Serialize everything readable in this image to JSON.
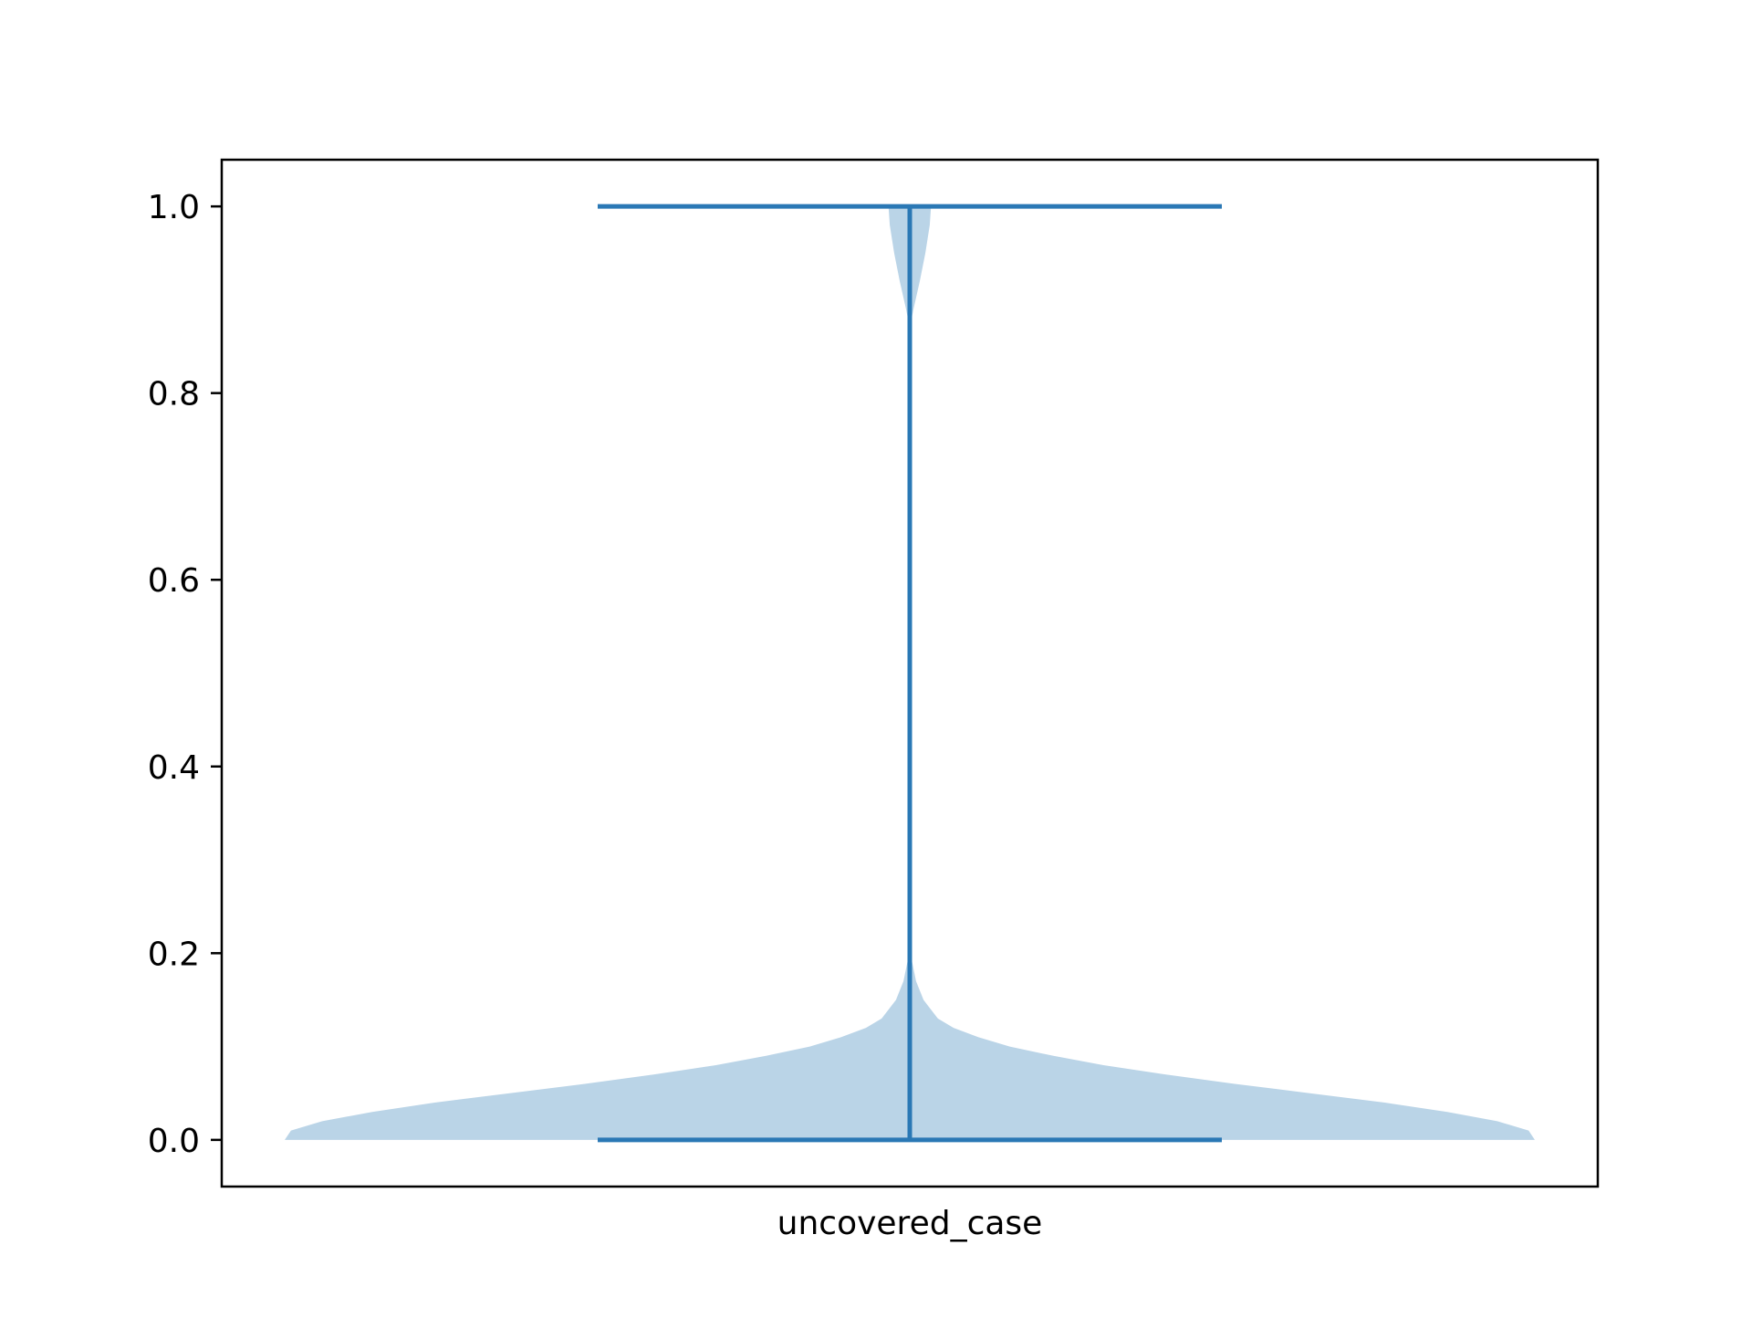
{
  "chart_data": {
    "type": "violin",
    "categories": [
      "uncovered_case"
    ],
    "series": [
      {
        "category": "uncovered_case",
        "min": 0.0,
        "max": 1.0,
        "density_profile": [
          {
            "y": 0.0,
            "w": 1.0
          },
          {
            "y": 0.01,
            "w": 0.99
          },
          {
            "y": 0.02,
            "w": 0.94
          },
          {
            "y": 0.03,
            "w": 0.86
          },
          {
            "y": 0.04,
            "w": 0.76
          },
          {
            "y": 0.05,
            "w": 0.64
          },
          {
            "y": 0.06,
            "w": 0.52
          },
          {
            "y": 0.07,
            "w": 0.41
          },
          {
            "y": 0.08,
            "w": 0.31
          },
          {
            "y": 0.09,
            "w": 0.23
          },
          {
            "y": 0.1,
            "w": 0.16
          },
          {
            "y": 0.11,
            "w": 0.11
          },
          {
            "y": 0.12,
            "w": 0.07
          },
          {
            "y": 0.13,
            "w": 0.045
          },
          {
            "y": 0.15,
            "w": 0.022
          },
          {
            "y": 0.17,
            "w": 0.01
          },
          {
            "y": 0.19,
            "w": 0.004
          },
          {
            "y": 0.2,
            "w": 0.0
          },
          {
            "y": 0.87,
            "w": 0.0
          },
          {
            "y": 0.89,
            "w": 0.006
          },
          {
            "y": 0.92,
            "w": 0.016
          },
          {
            "y": 0.95,
            "w": 0.025
          },
          {
            "y": 0.98,
            "w": 0.032
          },
          {
            "y": 1.0,
            "w": 0.034
          }
        ]
      }
    ],
    "yticks": [
      "0.0",
      "0.2",
      "0.4",
      "0.6",
      "0.8",
      "1.0"
    ],
    "ylim": [
      -0.05,
      1.05
    ],
    "title": "",
    "xlabel": "",
    "ylabel": "",
    "grid": false,
    "colors": {
      "body": "#bad4e7",
      "lines": "#2a78b5",
      "axes": "#000000"
    }
  }
}
